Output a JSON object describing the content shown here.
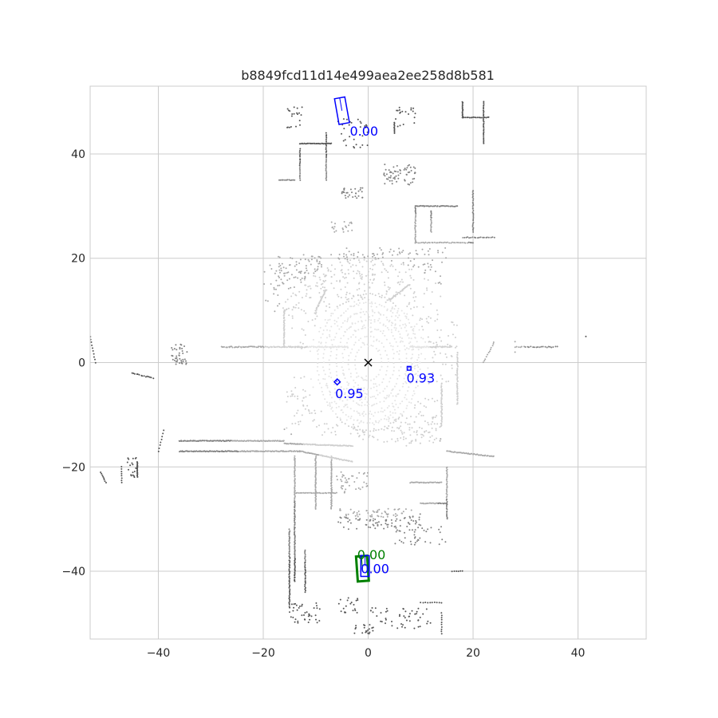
{
  "chart_data": {
    "type": "scatter",
    "title": "b8849fcd11d14e499aea2ee258d8b581",
    "xlabel": "",
    "ylabel": "",
    "xlim": [
      -53,
      53
    ],
    "ylim": [
      -53,
      53
    ],
    "grid": true,
    "x_ticks": [
      -40,
      -20,
      0,
      20,
      40
    ],
    "y_ticks": [
      -40,
      -20,
      0,
      20,
      40
    ],
    "x_tick_labels": [
      "−40",
      "−20",
      "0",
      "20",
      "40"
    ],
    "y_tick_labels": [
      "−40",
      "−20",
      "0",
      "20",
      "40"
    ],
    "ego_marker": {
      "x": 0,
      "y": 0,
      "symbol": "x",
      "color": "#000000"
    },
    "colors": {
      "prediction": "#0000ff",
      "ground_truth": "#008000",
      "grid": "#cccccc",
      "spine": "#cccccc"
    },
    "boxes": [
      {
        "kind": "prediction",
        "cx": -5.0,
        "cy": 48.3,
        "length": 5.0,
        "width": 2.0,
        "yaw_deg": 10,
        "score": "0.00",
        "label_x": -3.5,
        "label_y": 43.5
      },
      {
        "kind": "prediction",
        "cx": -5.9,
        "cy": -3.7,
        "length": 0.8,
        "width": 0.8,
        "yaw_deg": 45,
        "score": "0.95",
        "label_x": -6.3,
        "label_y": -6.8
      },
      {
        "kind": "prediction",
        "cx": 7.8,
        "cy": -1.1,
        "length": 0.7,
        "width": 0.7,
        "yaw_deg": 0,
        "score": "0.93",
        "label_x": 7.3,
        "label_y": -3.8
      },
      {
        "kind": "ground_truth",
        "cx": -1.1,
        "cy": -39.5,
        "length": 4.8,
        "width": 2.1,
        "yaw_deg": 4,
        "score": "0.00",
        "label_x": -2.1,
        "label_y": -37.7
      },
      {
        "kind": "prediction",
        "cx": -0.6,
        "cy": -39.0,
        "length": 4.0,
        "width": 1.6,
        "yaw_deg": 0,
        "score": "0.00",
        "label_x": -1.4,
        "label_y": -40.4
      }
    ]
  }
}
